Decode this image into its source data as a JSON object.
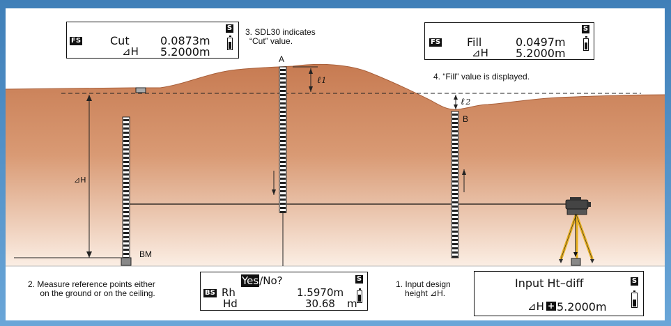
{
  "top_left_display": {
    "mode_tag": "FS",
    "label": "Cut",
    "value": "0.0873m",
    "dh_label": "⊿H",
    "dh_value": "5.2000m",
    "status": "S"
  },
  "top_right_display": {
    "mode_tag": "FS",
    "label": "Fill",
    "value": "0.0497m",
    "dh_label": "⊿H",
    "dh_value": "5.2000m",
    "status": "S"
  },
  "bottom_center_display": {
    "yes": "Yes",
    "no": "/No?",
    "mode_tag": "BS",
    "rh_label": "Rh",
    "rh_value": "1.5970m",
    "hd_label": "Hd",
    "hd_value": "30.68",
    "hd_unit": "m",
    "status": "S"
  },
  "bottom_right_display": {
    "title": "Input Ht–diff",
    "dh_label": "⊿H",
    "sign": "+",
    "value": "5.2000m",
    "status": "S"
  },
  "notes": {
    "step1_line1": "1. Input design",
    "step1_line2": "height ⊿H.",
    "step2_line1": "2. Measure reference points either",
    "step2_line2": "on the ground or on the ceiling.",
    "step3_line1": "3. SDL30 indicates",
    "step3_line2": "“Cut” value.",
    "step4": "4. “Fill” value is displayed."
  },
  "labels": {
    "point_a": "A",
    "point_b": "B",
    "bm": "BM",
    "dh": "⊿H",
    "l1": "ℓ",
    "l1_sub": "1",
    "l2": "ℓ",
    "l2_sub": "2"
  },
  "colors": {
    "frame": "#4f8fc4",
    "soil_top": "#c77b52",
    "soil_bottom": "#f8e6d8",
    "panel": "#ffffff",
    "tripod": "#e8b020"
  }
}
